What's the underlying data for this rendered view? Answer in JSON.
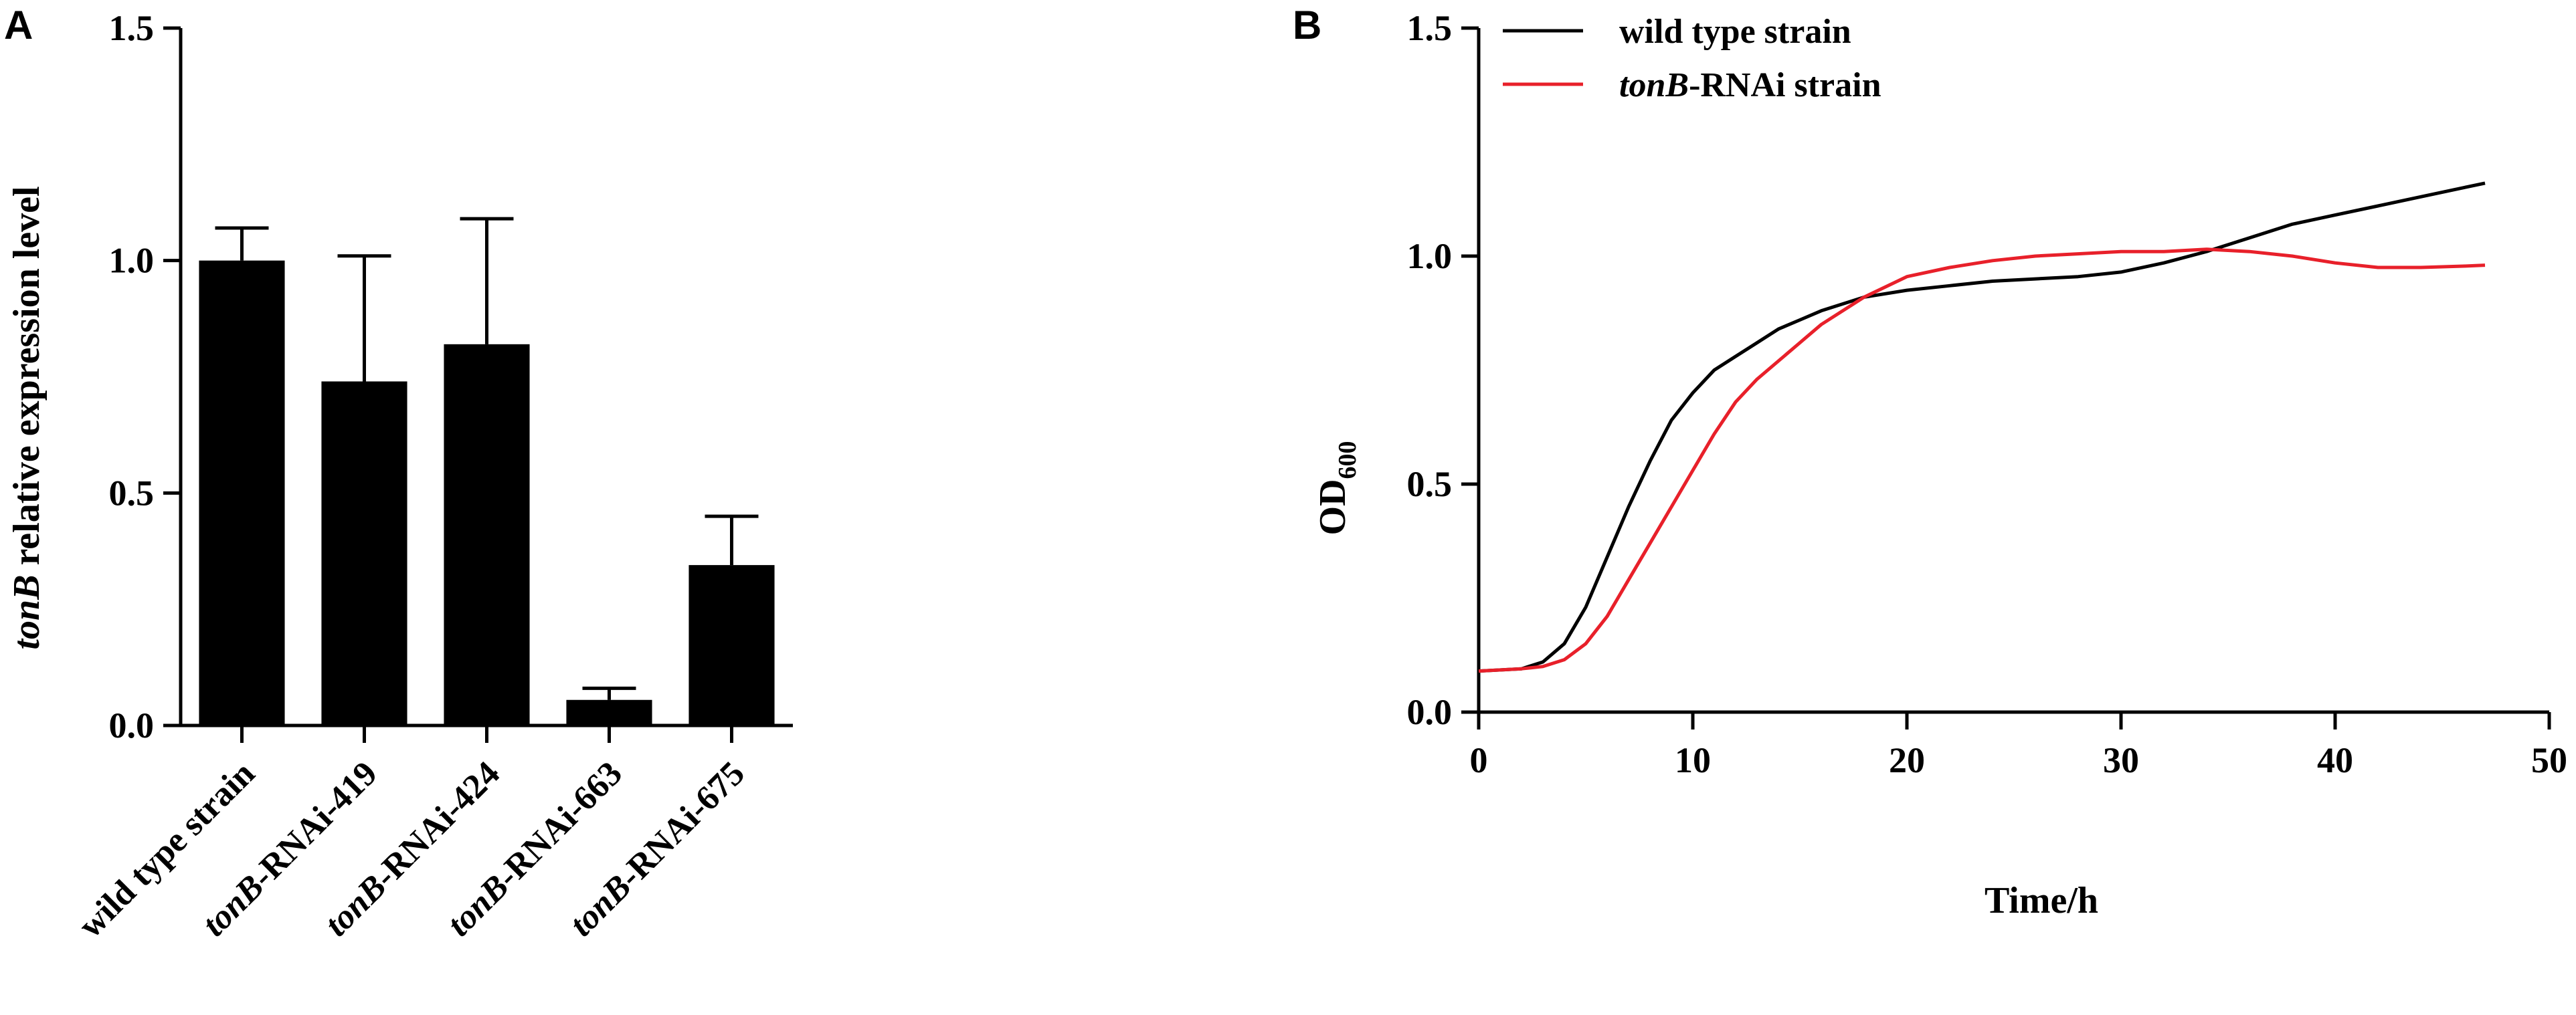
{
  "chart_data": [
    {
      "panel": "A",
      "type": "bar",
      "ylabel_italic": "tonB",
      "ylabel_rest": " relative expression level",
      "ylim": [
        0,
        1.5
      ],
      "yticks": [
        "0.0",
        "0.5",
        "1.0",
        "1.5"
      ],
      "ytick_values": [
        0,
        0.5,
        1.0,
        1.5
      ],
      "categories": [
        {
          "italic": "",
          "rest": "wild type strain"
        },
        {
          "italic": "tonB",
          "rest": "-RNAi-419"
        },
        {
          "italic": "tonB",
          "rest": "-RNAi-424"
        },
        {
          "italic": "tonB",
          "rest": "-RNAi-663"
        },
        {
          "italic": "tonB",
          "rest": "-RNAi-675"
        }
      ],
      "values": [
        1.0,
        0.74,
        0.82,
        0.055,
        0.345
      ],
      "errors": [
        0.07,
        0.27,
        0.27,
        0.025,
        0.105
      ],
      "bar_color": "#000000"
    },
    {
      "panel": "B",
      "type": "line",
      "xlabel": "Time/h",
      "ylabel_main": "OD",
      "ylabel_sub": "600",
      "xlim": [
        0,
        50
      ],
      "ylim": [
        0,
        1.5
      ],
      "xticks": [
        "0",
        "10",
        "20",
        "30",
        "40",
        "50"
      ],
      "xtick_values": [
        0,
        10,
        20,
        30,
        40,
        50
      ],
      "yticks": [
        "0.0",
        "0.5",
        "1.0",
        "1.5"
      ],
      "ytick_values": [
        0,
        0.5,
        1.0,
        1.5
      ],
      "series": [
        {
          "name": "wild type strain",
          "name_italic": "",
          "name_rest": "wild type strain",
          "color": "#000000",
          "x": [
            0,
            2,
            3,
            4,
            5,
            6,
            7,
            8,
            9,
            10,
            11,
            12,
            13,
            14,
            15,
            16,
            18,
            20,
            22,
            24,
            26,
            28,
            30,
            32,
            34,
            36,
            38,
            40,
            42,
            44,
            46,
            47
          ],
          "y": [
            0.09,
            0.095,
            0.11,
            0.15,
            0.23,
            0.34,
            0.45,
            0.55,
            0.64,
            0.7,
            0.75,
            0.78,
            0.81,
            0.84,
            0.86,
            0.88,
            0.91,
            0.925,
            0.935,
            0.945,
            0.95,
            0.955,
            0.965,
            0.985,
            1.01,
            1.04,
            1.07,
            1.09,
            1.11,
            1.13,
            1.15,
            1.16
          ]
        },
        {
          "name": "tonB-RNAi strain",
          "name_italic": "tonB",
          "name_rest": "-RNAi strain",
          "color": "#e8202a",
          "x": [
            0,
            2,
            3,
            4,
            5,
            6,
            7,
            8,
            9,
            10,
            11,
            12,
            13,
            14,
            15,
            16,
            18,
            20,
            22,
            24,
            26,
            28,
            30,
            32,
            34,
            36,
            38,
            40,
            42,
            44,
            46,
            47
          ],
          "y": [
            0.09,
            0.095,
            0.1,
            0.115,
            0.15,
            0.21,
            0.29,
            0.37,
            0.45,
            0.53,
            0.61,
            0.68,
            0.73,
            0.77,
            0.81,
            0.85,
            0.91,
            0.955,
            0.975,
            0.99,
            1.0,
            1.005,
            1.01,
            1.01,
            1.015,
            1.01,
            1.0,
            0.985,
            0.975,
            0.975,
            0.978,
            0.98
          ]
        }
      ]
    }
  ]
}
